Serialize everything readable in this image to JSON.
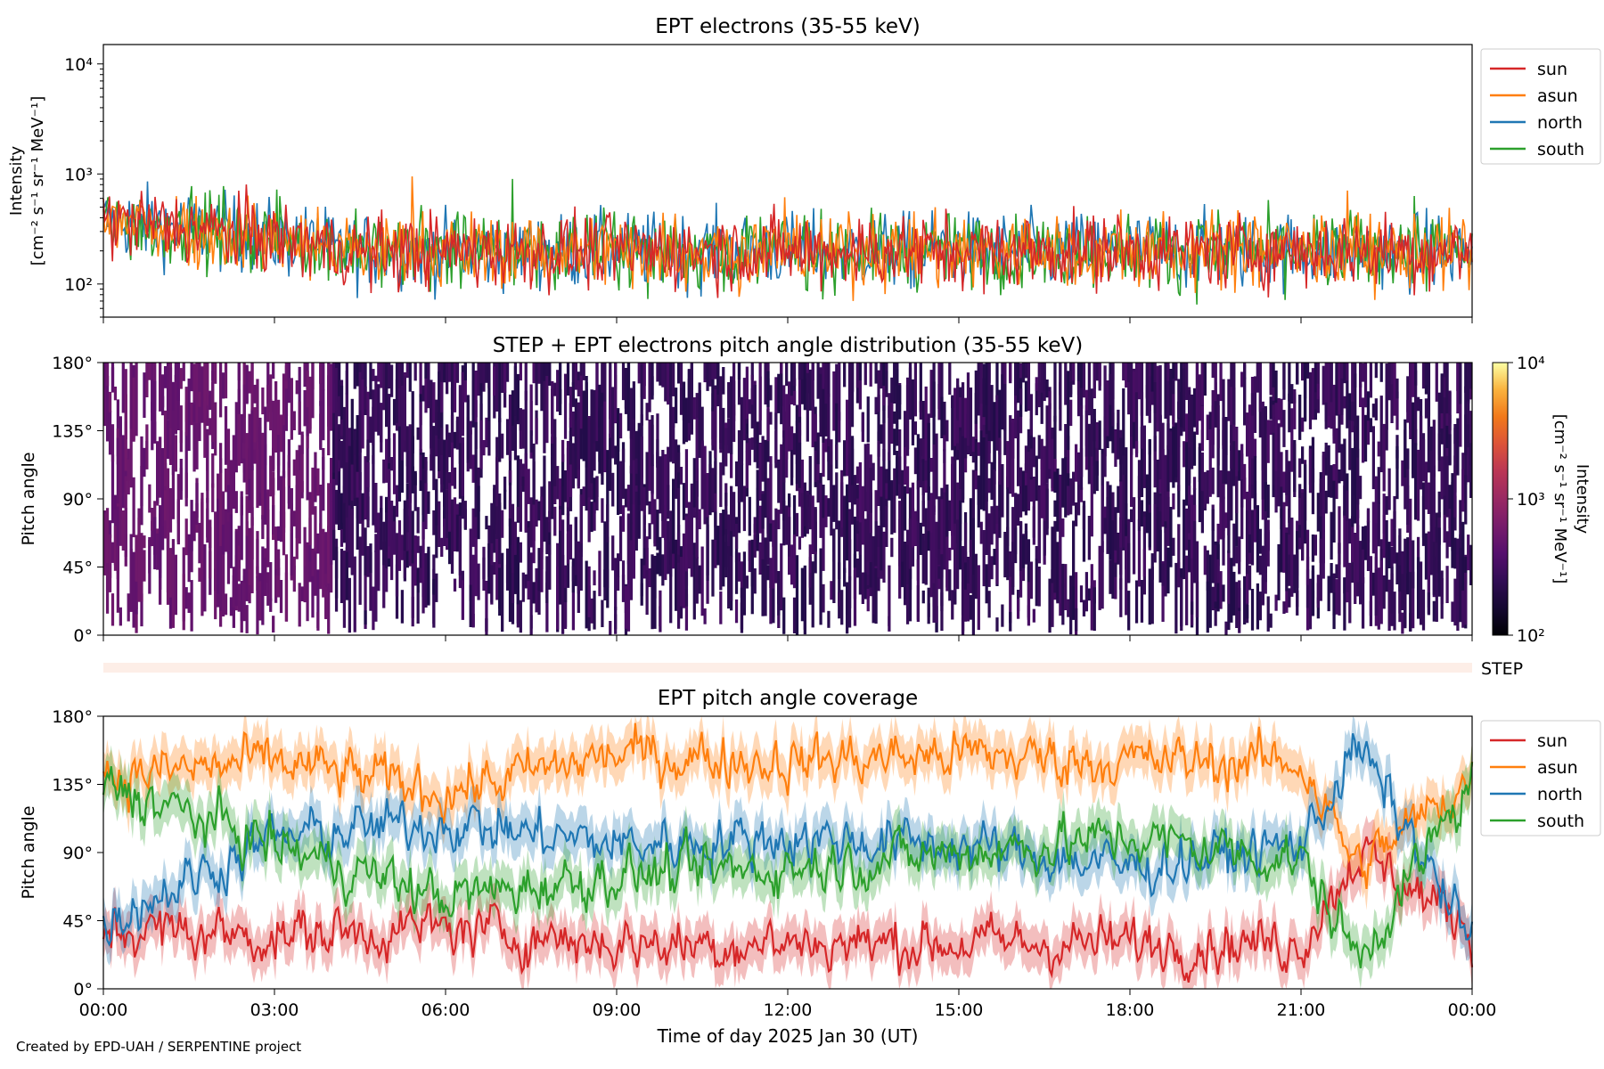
{
  "footer": "Created by EPD-UAH / SERPENTINE project",
  "colors": {
    "sun": "#d62728",
    "asun": "#ff7f0e",
    "north": "#1f77b4",
    "south": "#2ca02c",
    "step_bar": "#fdeee7"
  },
  "chart_data": [
    {
      "type": "line",
      "title": "EPT electrons (35-55 keV)",
      "xlabel": "",
      "ylabel": "Intensity",
      "ylabel_units": "[cm⁻² s⁻¹ sr⁻¹ MeV⁻¹]",
      "yscale": "log",
      "ylim": [
        50,
        15000
      ],
      "y_ticks": [
        100,
        1000,
        10000
      ],
      "y_tick_labels": [
        "10²",
        "10³",
        "10⁴"
      ],
      "xlim_hours": [
        0,
        24
      ],
      "legend": [
        "sun",
        "asun",
        "north",
        "south"
      ],
      "legend_position": "outside-right-top",
      "series": [
        {
          "name": "sun",
          "typical_range": [
            60,
            700
          ],
          "note": "noisy, fluctuating data"
        },
        {
          "name": "asun",
          "typical_range": [
            60,
            900
          ]
        },
        {
          "name": "north",
          "typical_range": [
            60,
            700
          ]
        },
        {
          "name": "south",
          "typical_range": [
            60,
            800
          ]
        }
      ]
    },
    {
      "type": "heatmap",
      "title": "STEP + EPT electrons pitch angle distribution (35-55 keV)",
      "ylabel": "Pitch angle",
      "ylim": [
        0,
        180
      ],
      "y_ticks": [
        0,
        45,
        90,
        135,
        180
      ],
      "y_tick_labels": [
        "0°",
        "45°",
        "90°",
        "135°",
        "180°"
      ],
      "xlim_hours": [
        0,
        24
      ],
      "colorbar": {
        "label": "Intensity",
        "units": "[cm⁻² s⁻¹ sr⁻¹ MeV⁻¹]",
        "scale": "log",
        "range": [
          100,
          10000
        ],
        "tick_labels": [
          "10²",
          "10³",
          "10⁴"
        ],
        "colormap": "inferno"
      },
      "step_label": "STEP"
    },
    {
      "type": "line",
      "title": "EPT pitch angle coverage",
      "xlabel": "Time of day 2025 Jan 30 (UT)",
      "ylabel": "Pitch angle",
      "ylim": [
        0,
        180
      ],
      "y_ticks": [
        0,
        45,
        90,
        135,
        180
      ],
      "y_tick_labels": [
        "0°",
        "45°",
        "90°",
        "135°",
        "180°"
      ],
      "x_tick_labels": [
        "00:00",
        "03:00",
        "06:00",
        "09:00",
        "12:00",
        "15:00",
        "18:00",
        "21:00",
        "00:00"
      ],
      "xlim_hours": [
        0,
        24
      ],
      "legend": [
        "sun",
        "asun",
        "north",
        "south"
      ],
      "legend_position": "outside-right-top",
      "series": [
        {
          "name": "sun",
          "typical_mean": 35,
          "x": [
            0,
            3,
            6,
            9,
            12,
            15,
            18,
            21,
            22,
            24
          ],
          "mean": [
            40,
            35,
            40,
            30,
            30,
            30,
            30,
            30,
            90,
            40
          ]
        },
        {
          "name": "asun",
          "typical_mean": 150,
          "x": [
            0,
            3,
            6,
            9,
            12,
            15,
            18,
            21,
            22,
            24
          ],
          "mean": [
            140,
            150,
            130,
            155,
            150,
            155,
            150,
            150,
            80,
            140
          ]
        },
        {
          "name": "north",
          "typical_mean": 90,
          "x": [
            0,
            3,
            6,
            9,
            12,
            15,
            18,
            21,
            22,
            24
          ],
          "mean": [
            45,
            100,
            110,
            95,
            100,
            95,
            80,
            95,
            160,
            30
          ]
        },
        {
          "name": "south",
          "typical_mean": 80,
          "x": [
            0,
            3,
            6,
            9,
            12,
            15,
            18,
            21,
            22,
            24
          ],
          "mean": [
            135,
            95,
            60,
            75,
            80,
            90,
            100,
            85,
            20,
            135
          ]
        }
      ]
    }
  ]
}
